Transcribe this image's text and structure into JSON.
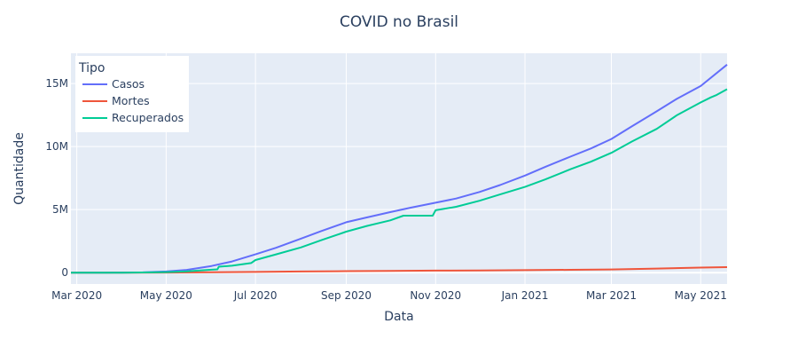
{
  "chart_data": {
    "type": "line",
    "title": "COVID no Brasil",
    "xlabel": "Data",
    "ylabel": "Quantidade",
    "x_range": [
      "2020-02-26",
      "2021-05-19"
    ],
    "y_range": [
      -900000,
      17400000
    ],
    "x_ticks": [
      {
        "date": "2020-03-01",
        "label": "Mar 2020"
      },
      {
        "date": "2020-05-01",
        "label": "May 2020"
      },
      {
        "date": "2020-07-01",
        "label": "Jul 2020"
      },
      {
        "date": "2020-09-01",
        "label": "Sep 2020"
      },
      {
        "date": "2020-11-01",
        "label": "Nov 2020"
      },
      {
        "date": "2021-01-01",
        "label": "Jan 2021"
      },
      {
        "date": "2021-03-01",
        "label": "Mar 2021"
      },
      {
        "date": "2021-05-01",
        "label": "May 2021"
      }
    ],
    "y_ticks": [
      {
        "value": 0,
        "label": "0"
      },
      {
        "value": 5000000,
        "label": "5M"
      },
      {
        "value": 10000000,
        "label": "10M"
      },
      {
        "value": 15000000,
        "label": "15M"
      }
    ],
    "grid": true,
    "legend": {
      "title": "Tipo",
      "position": "top-left"
    },
    "series": [
      {
        "name": "Casos",
        "color": "#636efa",
        "points": [
          [
            "2020-02-26",
            0
          ],
          [
            "2020-03-20",
            1000
          ],
          [
            "2020-04-01",
            6000
          ],
          [
            "2020-04-15",
            25000
          ],
          [
            "2020-05-01",
            90000
          ],
          [
            "2020-05-15",
            220000
          ],
          [
            "2020-06-01",
            530000
          ],
          [
            "2020-06-15",
            890000
          ],
          [
            "2020-07-01",
            1450000
          ],
          [
            "2020-07-15",
            1970000
          ],
          [
            "2020-08-01",
            2700000
          ],
          [
            "2020-08-15",
            3300000
          ],
          [
            "2020-09-01",
            4000000
          ],
          [
            "2020-09-15",
            4380000
          ],
          [
            "2020-10-01",
            4800000
          ],
          [
            "2020-10-15",
            5150000
          ],
          [
            "2020-11-01",
            5550000
          ],
          [
            "2020-11-15",
            5880000
          ],
          [
            "2020-12-01",
            6400000
          ],
          [
            "2020-12-15",
            6950000
          ],
          [
            "2021-01-01",
            7700000
          ],
          [
            "2021-01-15",
            8400000
          ],
          [
            "2021-02-01",
            9200000
          ],
          [
            "2021-02-15",
            9850000
          ],
          [
            "2021-03-01",
            10600000
          ],
          [
            "2021-03-15",
            11600000
          ],
          [
            "2021-04-01",
            12800000
          ],
          [
            "2021-04-15",
            13800000
          ],
          [
            "2021-05-01",
            14800000
          ],
          [
            "2021-05-19",
            16500000
          ]
        ]
      },
      {
        "name": "Mortes",
        "color": "#ef553b",
        "points": [
          [
            "2020-02-26",
            0
          ],
          [
            "2020-04-01",
            500
          ],
          [
            "2020-05-01",
            6000
          ],
          [
            "2020-06-01",
            30000
          ],
          [
            "2020-07-01",
            60000
          ],
          [
            "2020-08-01",
            93000
          ],
          [
            "2020-09-01",
            122000
          ],
          [
            "2020-10-01",
            145000
          ],
          [
            "2020-11-01",
            160000
          ],
          [
            "2020-12-01",
            174000
          ],
          [
            "2021-01-01",
            195000
          ],
          [
            "2021-02-01",
            225000
          ],
          [
            "2021-03-01",
            255000
          ],
          [
            "2021-04-01",
            322000
          ],
          [
            "2021-05-01",
            405000
          ],
          [
            "2021-05-19",
            440000
          ]
        ]
      },
      {
        "name": "Recuperados",
        "color": "#00cc96",
        "points": [
          [
            "2020-02-26",
            0
          ],
          [
            "2020-04-01",
            2000
          ],
          [
            "2020-04-15",
            12000
          ],
          [
            "2020-05-01",
            40000
          ],
          [
            "2020-05-15",
            100000
          ],
          [
            "2020-06-01",
            230000
          ],
          [
            "2020-06-05",
            260000
          ],
          [
            "2020-06-06",
            470000
          ],
          [
            "2020-06-15",
            550000
          ],
          [
            "2020-06-28",
            760000
          ],
          [
            "2020-07-01",
            1000000
          ],
          [
            "2020-07-15",
            1450000
          ],
          [
            "2020-08-01",
            2000000
          ],
          [
            "2020-08-15",
            2580000
          ],
          [
            "2020-09-01",
            3250000
          ],
          [
            "2020-09-15",
            3700000
          ],
          [
            "2020-10-01",
            4150000
          ],
          [
            "2020-10-10",
            4520000
          ],
          [
            "2020-10-30",
            4520000
          ],
          [
            "2020-11-01",
            4950000
          ],
          [
            "2020-11-15",
            5220000
          ],
          [
            "2020-12-01",
            5700000
          ],
          [
            "2020-12-15",
            6200000
          ],
          [
            "2021-01-01",
            6800000
          ],
          [
            "2021-01-15",
            7400000
          ],
          [
            "2021-02-01",
            8200000
          ],
          [
            "2021-02-15",
            8800000
          ],
          [
            "2021-03-01",
            9500000
          ],
          [
            "2021-03-15",
            10400000
          ],
          [
            "2021-04-01",
            11400000
          ],
          [
            "2021-04-15",
            12500000
          ],
          [
            "2021-05-01",
            13500000
          ],
          [
            "2021-05-08",
            13900000
          ],
          [
            "2021-05-12",
            14100000
          ],
          [
            "2021-05-19",
            14550000
          ]
        ]
      }
    ]
  }
}
